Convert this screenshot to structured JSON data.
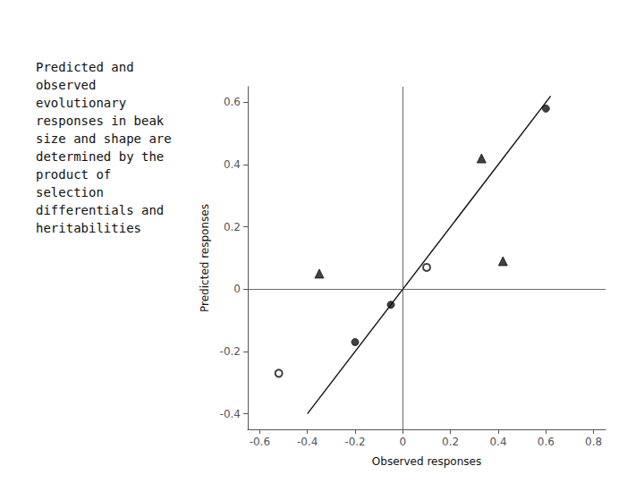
{
  "chart_data": {
    "type": "scatter",
    "xlabel": "Observed responses",
    "ylabel": "Predicted responses",
    "annotations": [
      "Predicted and",
      "observed",
      "evolutionary",
      "responses in beak",
      "size and shape are",
      "determined by the",
      "product of",
      "selection",
      "differentials and",
      "heritabilities"
    ],
    "xlim": [
      -0.65,
      0.85
    ],
    "ylim": [
      -0.45,
      0.65
    ],
    "xticks": [
      -0.6,
      -0.4,
      -0.2,
      0,
      0.2,
      0.4,
      0.6,
      0.8
    ],
    "yticks": [
      -0.4,
      -0.2,
      0,
      0.2,
      0.4,
      0.6
    ],
    "grid": false,
    "hlines": [
      0
    ],
    "vlines": [
      0
    ],
    "series": [
      {
        "type": "scatter",
        "marker": "circle",
        "color": "#111111",
        "x": [
          -0.2,
          -0.05,
          0.6
        ],
        "values": [
          -0.17,
          -0.05,
          0.58
        ]
      },
      {
        "type": "scatter",
        "marker": "open_circle",
        "color": "#111111",
        "x": [
          -0.52,
          0.1
        ],
        "values": [
          -0.27,
          0.07
        ]
      },
      {
        "type": "scatter",
        "marker": "triangle",
        "color": "#111111",
        "x": [
          -0.35,
          0.33,
          0.42
        ],
        "values": [
          0.05,
          0.42,
          0.09
        ]
      },
      {
        "type": "line",
        "line_style": "solid",
        "color": "#111111",
        "x": [
          -0.4,
          0.62
        ],
        "values": [
          -0.4,
          0.62
        ]
      }
    ]
  }
}
